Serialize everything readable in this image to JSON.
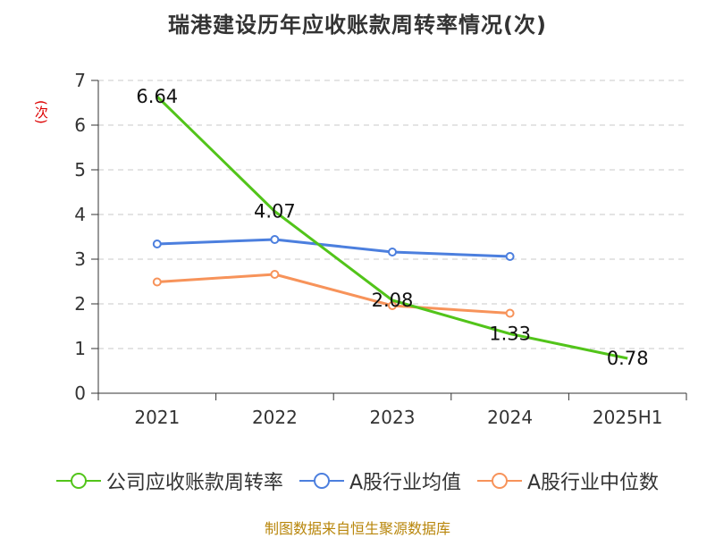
{
  "chart_data": {
    "type": "line",
    "title": "瑞港建设历年应收账款周转率情况(次)",
    "ylabel": "(次)",
    "xlabel": "",
    "categories": [
      "2021",
      "2022",
      "2023",
      "2024",
      "2025H1"
    ],
    "ylim": [
      0,
      7
    ],
    "yticks": [
      0,
      1,
      2,
      3,
      4,
      5,
      6,
      7
    ],
    "grid": true,
    "legend_position": "bottom",
    "series": [
      {
        "name": "公司应收账款周转率",
        "color": "#52c41a",
        "values": [
          6.64,
          4.07,
          2.08,
          1.33,
          0.78
        ],
        "labels": [
          "6.64",
          "4.07",
          "2.08",
          "1.33",
          "0.78"
        ]
      },
      {
        "name": "A股行业均值",
        "color": "#4c7fde",
        "values": [
          3.34,
          3.44,
          3.16,
          3.06,
          null
        ]
      },
      {
        "name": "A股行业中位数",
        "color": "#f7935a",
        "values": [
          2.49,
          2.66,
          1.96,
          1.79,
          null
        ]
      }
    ]
  },
  "source": "制图数据来自恒生聚源数据库"
}
